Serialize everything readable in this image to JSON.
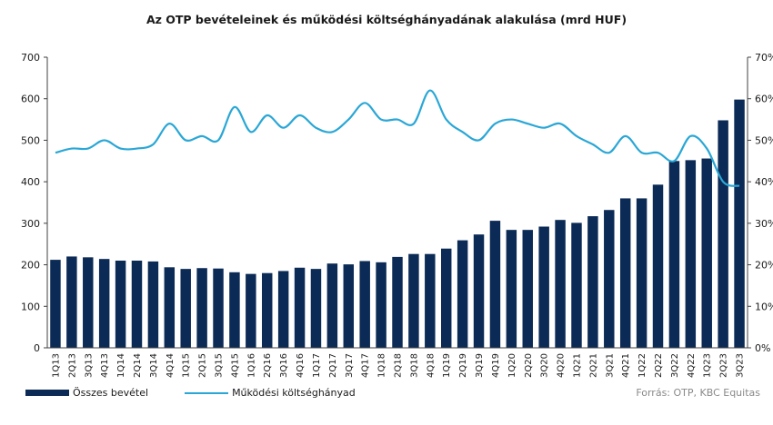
{
  "title": "Az OTP bevételeinek  és működési költséghányadának alakulása (mrd HUF)",
  "source": "Forrás: OTP, KBC Equitas",
  "colors": {
    "bar": "#0b2a55",
    "line": "#2aa7d6",
    "axis": "#404040",
    "text": "#1a1a1a"
  },
  "chart_data": {
    "type": "bar",
    "categories": [
      "1Q13",
      "2Q13",
      "3Q13",
      "4Q13",
      "1Q14",
      "2Q14",
      "3Q14",
      "4Q14",
      "1Q15",
      "2Q15",
      "3Q15",
      "4Q15",
      "1Q16",
      "2Q16",
      "3Q16",
      "4Q16",
      "1Q17",
      "2Q17",
      "3Q17",
      "4Q17",
      "1Q18",
      "2Q18",
      "3Q18",
      "4Q18",
      "1Q19",
      "2Q19",
      "3Q19",
      "4Q19",
      "1Q20",
      "2Q20",
      "3Q20",
      "4Q20",
      "1Q21",
      "2Q21",
      "3Q21",
      "4Q21",
      "1Q22",
      "2Q22",
      "3Q22",
      "4Q22",
      "1Q23",
      "2Q23",
      "3Q23"
    ],
    "series": [
      {
        "name": "Összes bevétel",
        "type": "bar",
        "axis": "left",
        "values": [
          212,
          220,
          218,
          214,
          210,
          210,
          208,
          194,
          190,
          192,
          191,
          182,
          178,
          180,
          185,
          193,
          190,
          203,
          201,
          209,
          206,
          219,
          226,
          226,
          239,
          259,
          273,
          306,
          284,
          284,
          292,
          308,
          301,
          317,
          332,
          360,
          360,
          393,
          450,
          452,
          456,
          548,
          598
        ]
      },
      {
        "name": "Működési költséghányad",
        "type": "line",
        "axis": "right",
        "values": [
          47,
          48,
          48,
          50,
          48,
          48,
          49,
          54,
          50,
          51,
          50,
          58,
          52,
          56,
          53,
          56,
          53,
          52,
          55,
          59,
          55,
          55,
          54,
          62,
          55,
          52,
          50,
          54,
          55,
          54,
          53,
          54,
          51,
          49,
          47,
          51,
          47,
          47,
          45,
          51,
          48,
          40,
          39
        ]
      }
    ],
    "y_left": {
      "min": 0,
      "max": 700,
      "ticks": [
        "0",
        "100",
        "200",
        "300",
        "400",
        "500",
        "600",
        "700"
      ]
    },
    "y_right": {
      "min": 0,
      "max": 70,
      "ticks": [
        "0%",
        "10%",
        "20%",
        "30%",
        "40%",
        "50%",
        "60%",
        "70%"
      ]
    },
    "grid": false,
    "legend": "bottom-left"
  }
}
